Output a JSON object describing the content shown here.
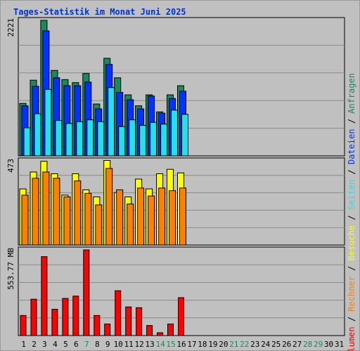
{
  "chart_data": {
    "type": "bar",
    "title": "Tages-Statistik im Monat Juni 2025",
    "days": [
      "1",
      "2",
      "3",
      "4",
      "5",
      "6",
      "7",
      "8",
      "9",
      "10",
      "11",
      "12",
      "13",
      "14",
      "15",
      "16",
      "17",
      "18",
      "19",
      "20",
      "21",
      "22",
      "23",
      "24",
      "25",
      "26",
      "27",
      "28",
      "29",
      "30",
      "31"
    ],
    "weekend_days": [
      "7",
      "14",
      "15",
      "21",
      "22",
      "28",
      "29"
    ],
    "panels": [
      {
        "id": "top",
        "max_label": "2221",
        "max": 2221,
        "series": [
          {
            "name": "Anfragen",
            "color": "#1a8a5a",
            "values": [
              860,
              1240,
              2221,
              1400,
              1250,
              1200,
              1350,
              850,
              1600,
              1280,
              1000,
              820,
              1000,
              720,
              1000,
              1150
            ]
          },
          {
            "name": "Dateien",
            "color": "#0033ff",
            "values": [
              820,
              1140,
              2050,
              1280,
              1150,
              1150,
              1210,
              770,
              1500,
              1040,
              920,
              770,
              980,
              700,
              940,
              1060
            ]
          },
          {
            "name": "Seiten",
            "color": "#22e0f0",
            "values": [
              460,
              690,
              1090,
              580,
              530,
              560,
              590,
              560,
              1120,
              480,
              590,
              500,
              550,
              520,
              750,
              680
            ]
          }
        ]
      },
      {
        "id": "middle",
        "max_label": "473",
        "max": 473,
        "series": [
          {
            "name": "Besuche",
            "color": "#ffff00",
            "values": [
              315,
              410,
              470,
              400,
              280,
              400,
              310,
              270,
              475,
              295,
              270,
              370,
              315,
              400,
              425,
              405
            ]
          },
          {
            "name": "Rechner",
            "color": "#ff8000",
            "values": [
              280,
              375,
              410,
              375,
              270,
              360,
              290,
              225,
              430,
              310,
              230,
              320,
              275,
              320,
              305,
              320
            ]
          }
        ]
      },
      {
        "id": "bottom",
        "max_label": "553.77 MB",
        "max": 553.77,
        "series": [
          {
            "name": "Volumen",
            "color": "#ff0000",
            "values": [
              130,
              235,
              510,
              170,
              240,
              255,
              553.77,
              130,
              75,
              290,
              185,
              180,
              65,
              18,
              75,
              245
            ]
          }
        ]
      }
    ],
    "legend": [
      {
        "name": "Volumen",
        "color": "#ff0000"
      },
      {
        "sep": " / "
      },
      {
        "name": "Rechner",
        "color": "#ff8000"
      },
      {
        "sep": " / "
      },
      {
        "name": "Besuche",
        "color": "#ffff00"
      },
      {
        "sep": " / "
      },
      {
        "name": "Seiten",
        "color": "#22e0f0"
      },
      {
        "sep": " / "
      },
      {
        "name": "Dateien",
        "color": "#0033ff"
      },
      {
        "sep": " / "
      },
      {
        "name": "Anfragen",
        "color": "#1a8a5a"
      }
    ]
  }
}
